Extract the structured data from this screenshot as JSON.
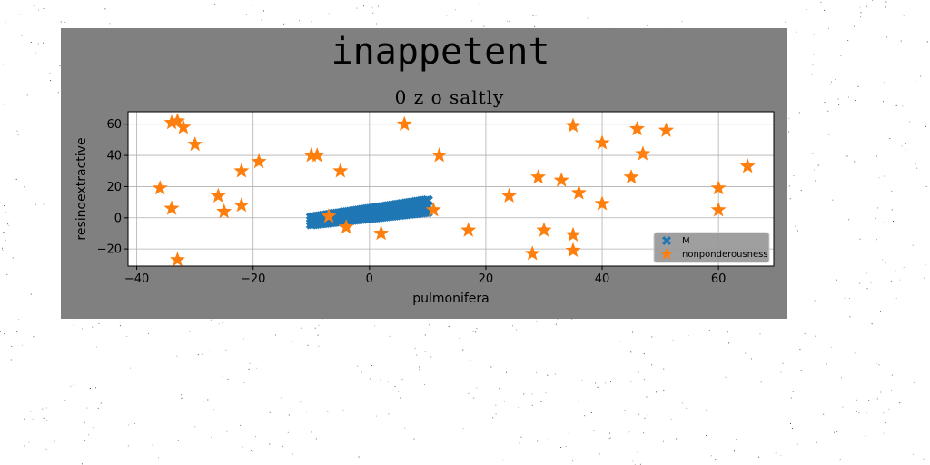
{
  "chart_data": {
    "type": "scatter",
    "title": "inappetent",
    "subtitle": "0 z o saltly",
    "xlabel": "pulmonifera",
    "ylabel": "resinoextractive",
    "xlim": [
      -41.5,
      69.5
    ],
    "ylim": [
      -31,
      68
    ],
    "xticks": [
      -40,
      -20,
      0,
      20,
      40,
      60
    ],
    "yticks": [
      -20,
      0,
      20,
      40,
      60
    ],
    "xtick_labels": [
      "−40",
      "−20",
      "0",
      "20",
      "40",
      "60"
    ],
    "ytick_labels": [
      "−20",
      "0",
      "20",
      "40",
      "60"
    ],
    "grid": true,
    "legend_position": "lower-right",
    "series": [
      {
        "name": "M",
        "marker": "x-filled",
        "color": "#1f77b4",
        "x_start": -10,
        "x_end": 10,
        "count": 60,
        "y_lower_start": -4,
        "y_lower_end": 4,
        "y_upper_start": 0,
        "y_upper_end": 11
      },
      {
        "name": "nonponderousness",
        "marker": "star",
        "color": "#ff7f0e",
        "points": [
          [
            -34,
            61
          ],
          [
            -33,
            62
          ],
          [
            -32,
            58
          ],
          [
            -30,
            47
          ],
          [
            -36,
            19
          ],
          [
            -34,
            6
          ],
          [
            -33,
            -27
          ],
          [
            -26,
            14
          ],
          [
            -25,
            4
          ],
          [
            -22,
            30
          ],
          [
            -22,
            8
          ],
          [
            -19,
            36
          ],
          [
            -10,
            40
          ],
          [
            -9,
            40
          ],
          [
            -5,
            30
          ],
          [
            -7,
            1
          ],
          [
            -4,
            -6
          ],
          [
            2,
            -10
          ],
          [
            6,
            60
          ],
          [
            11,
            5
          ],
          [
            12,
            40
          ],
          [
            17,
            -8
          ],
          [
            24,
            14
          ],
          [
            28,
            -23
          ],
          [
            29,
            26
          ],
          [
            30,
            -8
          ],
          [
            33,
            24
          ],
          [
            35,
            59
          ],
          [
            35,
            -11
          ],
          [
            35,
            -21
          ],
          [
            36,
            16
          ],
          [
            40,
            48
          ],
          [
            40,
            9
          ],
          [
            45,
            26
          ],
          [
            46,
            57
          ],
          [
            47,
            41
          ],
          [
            51,
            56
          ],
          [
            60,
            19
          ],
          [
            60,
            5
          ],
          [
            65,
            33
          ]
        ]
      }
    ]
  }
}
